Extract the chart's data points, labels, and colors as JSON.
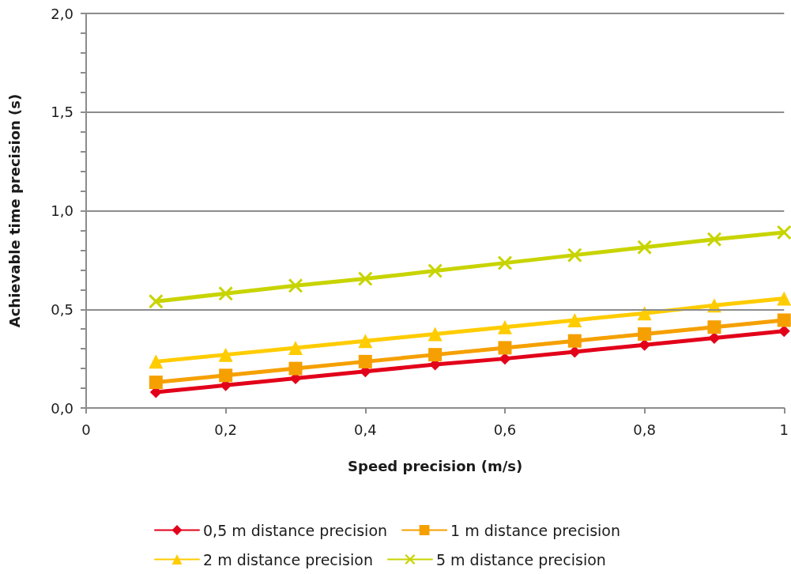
{
  "chart_data": {
    "type": "line",
    "xlabel": "Speed precision (m/s)",
    "ylabel": "Achievable time precision (s)",
    "x": [
      0.1,
      0.2,
      0.3,
      0.4,
      0.5,
      0.6,
      0.7,
      0.8,
      0.9,
      1.0
    ],
    "series": [
      {
        "name": "0,5 m distance precision",
        "color": "#e2001a",
        "marker": "diamond",
        "values": [
          0.08,
          0.115,
          0.15,
          0.185,
          0.22,
          0.25,
          0.285,
          0.32,
          0.355,
          0.39
        ]
      },
      {
        "name": "1 m distance precision",
        "color": "#f5a000",
        "marker": "square",
        "values": [
          0.13,
          0.165,
          0.2,
          0.235,
          0.27,
          0.305,
          0.34,
          0.375,
          0.41,
          0.445
        ]
      },
      {
        "name": "2 m distance precision",
        "color": "#ffcc00",
        "marker": "triangle",
        "values": [
          0.235,
          0.27,
          0.305,
          0.34,
          0.375,
          0.41,
          0.445,
          0.48,
          0.52,
          0.555
        ]
      },
      {
        "name": "5 m distance precision",
        "color": "#c8d400",
        "marker": "cross",
        "values": [
          0.54,
          0.58,
          0.62,
          0.655,
          0.695,
          0.735,
          0.775,
          0.815,
          0.855,
          0.89
        ]
      }
    ],
    "xlim": [
      0,
      1
    ],
    "xticks": [
      0,
      {
        "value": 0.2,
        "label": "0,2"
      },
      {
        "value": 0.4,
        "label": "0,4"
      },
      {
        "value": 0.6,
        "label": "0,6"
      },
      {
        "value": 0.8,
        "label": "0,8"
      },
      1
    ],
    "ylim": [
      0,
      2
    ],
    "yticks": [
      {
        "value": 0,
        "label": "0,0"
      },
      {
        "value": 0.1,
        "label": null
      },
      {
        "value": 0.2,
        "label": null
      },
      {
        "value": 0.3,
        "label": null
      },
      {
        "value": 0.4,
        "label": null
      },
      {
        "value": 0.5,
        "label": "0,5"
      },
      {
        "value": 0.6,
        "label": null
      },
      {
        "value": 0.7,
        "label": null
      },
      {
        "value": 0.8,
        "label": null
      },
      {
        "value": 0.9,
        "label": null
      },
      {
        "value": 1.0,
        "label": "1,0"
      },
      {
        "value": 1.1,
        "label": null
      },
      {
        "value": 1.2,
        "label": null
      },
      {
        "value": 1.3,
        "label": null
      },
      {
        "value": 1.4,
        "label": null
      },
      {
        "value": 1.5,
        "label": "1,5"
      },
      {
        "value": 1.6,
        "label": null
      },
      {
        "value": 1.7,
        "label": null
      },
      {
        "value": 1.8,
        "label": null
      },
      {
        "value": 1.9,
        "label": null
      },
      {
        "value": 2.0,
        "label": "2,0"
      }
    ],
    "grid": "y",
    "legend": "bottom",
    "line_style": "solid"
  }
}
